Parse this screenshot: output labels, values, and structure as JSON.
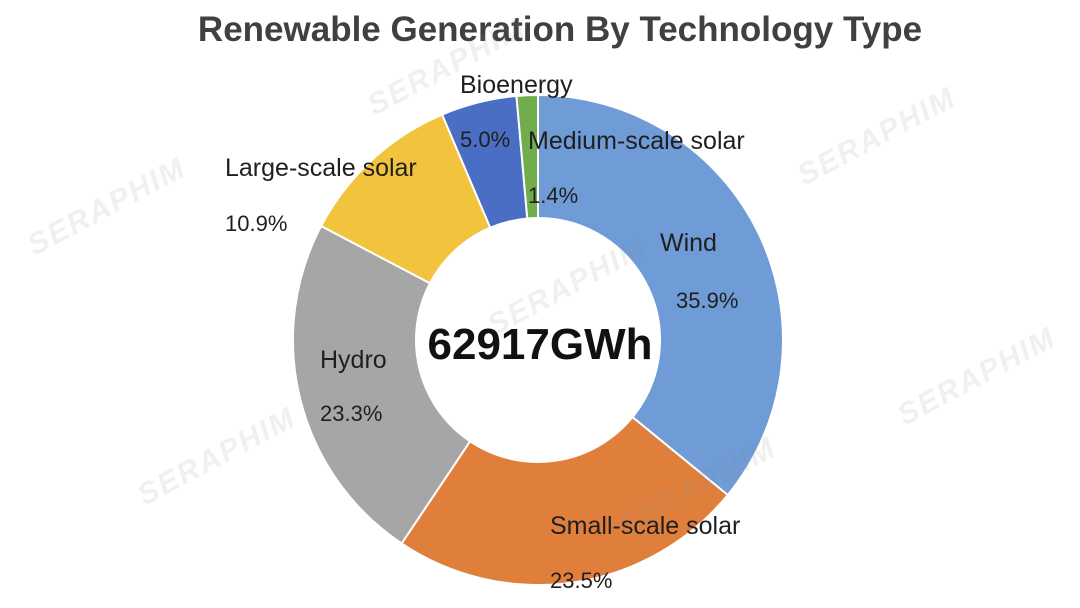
{
  "chart_data": {
    "type": "pie",
    "title": "Renewable Generation By Technology Type",
    "center_label": "62917GWh",
    "slices": [
      {
        "label": "Wind",
        "value": 35.9,
        "value_label": "35.9%",
        "color": "#6f9bd6"
      },
      {
        "label": "Small-scale solar",
        "value": 23.5,
        "value_label": "23.5%",
        "color": "#e07f3c"
      },
      {
        "label": "Hydro",
        "value": 23.3,
        "value_label": "23.3%",
        "color": "#a6a6a6"
      },
      {
        "label": "Large-scale solar",
        "value": 10.9,
        "value_label": "10.9%",
        "color": "#f2c33d"
      },
      {
        "label": "Bioenergy",
        "value": 5.0,
        "value_label": "5.0%",
        "color": "#4a6ec3"
      },
      {
        "label": "Medium-scale solar",
        "value": 1.4,
        "value_label": "1.4%",
        "color": "#72ad4d"
      }
    ]
  },
  "watermark": {
    "text": "SERAPHIM"
  }
}
